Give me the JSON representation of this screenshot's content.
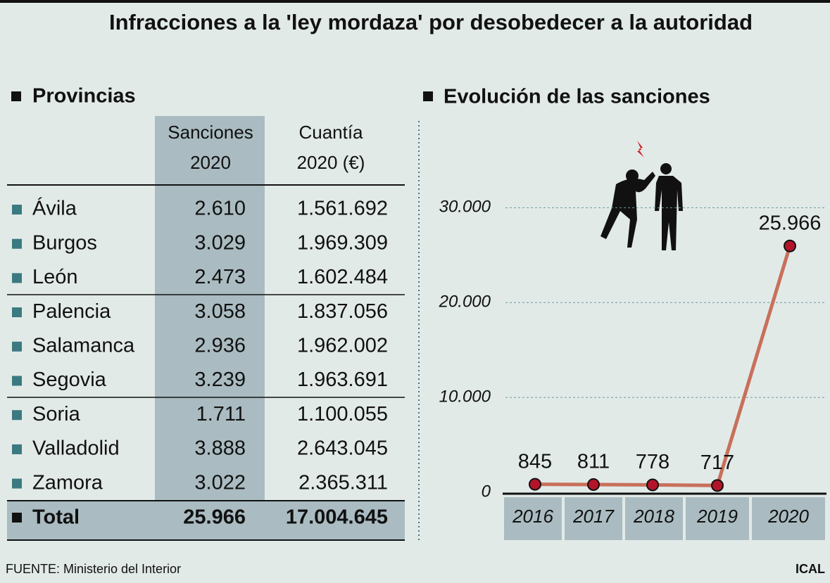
{
  "title": "Infracciones a la 'ley mordaza' por desobedecer a la autoridad",
  "table": {
    "heading": "Provincias",
    "columns": [
      [
        "Sanciones",
        "2020"
      ],
      [
        "Cuantía",
        "2020 (€)"
      ]
    ],
    "rows": [
      [
        "Ávila",
        "2.610",
        "1.561.692"
      ],
      [
        "Burgos",
        "3.029",
        "1.969.309"
      ],
      [
        "León",
        "2.473",
        "1.602.484"
      ],
      [
        "Palencia",
        "3.058",
        "1.837.056"
      ],
      [
        "Salamanca",
        "2.936",
        "1.962.002"
      ],
      [
        "Segovia",
        "3.239",
        "1.963.691"
      ],
      [
        "Soria",
        "1.711",
        "1.100.055"
      ],
      [
        "Valladolid",
        "3.888",
        "2.643.045"
      ],
      [
        "Zamora",
        "3.022",
        "2.365.311"
      ]
    ],
    "total": [
      "Total",
      "25.966",
      "17.004.645"
    ]
  },
  "chart_data": {
    "type": "line",
    "title": "Evolución de las sanciones",
    "categories": [
      "2016",
      "2017",
      "2018",
      "2019",
      "2020"
    ],
    "values": [
      845,
      811,
      778,
      717,
      25966
    ],
    "value_labels": [
      "845",
      "811",
      "778",
      "717",
      "25.966"
    ],
    "color": "#c8705a",
    "marker_color": "#b3142a",
    "ylim": [
      0,
      39000
    ],
    "yticks": [
      0,
      {
        "value": 10000,
        "label": "10.000"
      },
      {
        "value": 20000,
        "label": "20.000"
      },
      {
        "value": 30000,
        "label": "30.000"
      }
    ],
    "grid": true
  },
  "source": "FUENTE: Ministerio del Interior",
  "credit": "ICAL"
}
